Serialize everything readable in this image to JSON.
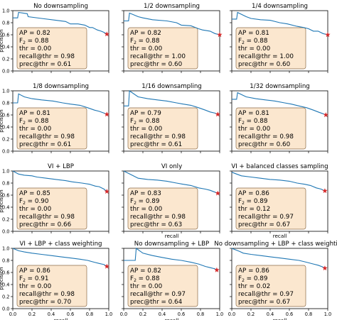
{
  "figure": {
    "xlabel": "recall",
    "ylabel": "precision",
    "colors": {
      "curve": "#1f77b4",
      "marker": "#d62728",
      "box_fill": "#fbe7cf",
      "box_edge": "#8c6b47"
    }
  },
  "chart_data": [
    {
      "type": "line",
      "title": "No downsampling",
      "x_ticks": [],
      "y_ticks": [
        "1.0",
        "0.8",
        "0.6",
        "0.4",
        "0.2",
        "0.0"
      ],
      "xlabel": "",
      "ylabel": "precision",
      "xlim": [
        0,
        1
      ],
      "ylim": [
        0,
        1
      ],
      "series": [
        {
          "x": [
            0.0,
            0.05,
            0.06,
            0.15,
            0.16,
            0.3,
            0.45,
            0.55,
            0.6,
            0.68,
            0.75,
            0.8,
            0.83,
            0.88,
            0.92,
            0.95,
            0.98
          ],
          "y": [
            0.88,
            0.88,
            0.97,
            0.95,
            0.9,
            0.87,
            0.84,
            0.82,
            0.78,
            0.78,
            0.76,
            0.72,
            0.72,
            0.68,
            0.66,
            0.64,
            0.61
          ]
        }
      ],
      "marker": {
        "x": 0.98,
        "y": 0.61
      },
      "stats": [
        {
          "label": "AP = 0.82"
        },
        {
          "label": "F",
          "sub": "2",
          "rest": " = 0.88"
        },
        {
          "label": "thr = 0.00"
        },
        {
          "label": "recall@thr = 0.98"
        },
        {
          "label": "prec@thr = 0.61"
        }
      ]
    },
    {
      "type": "line",
      "title": "1/2 downsampling",
      "x_ticks": [],
      "y_ticks": [],
      "xlabel": "",
      "ylabel": "",
      "xlim": [
        0,
        1
      ],
      "ylim": [
        0,
        1
      ],
      "series": [
        {
          "x": [
            0.0,
            0.05,
            0.06,
            0.15,
            0.2,
            0.3,
            0.45,
            0.55,
            0.6,
            0.7,
            0.78,
            0.82,
            0.9,
            0.95,
            1.0
          ],
          "y": [
            0.83,
            0.83,
            0.96,
            0.9,
            0.88,
            0.85,
            0.83,
            0.8,
            0.76,
            0.75,
            0.7,
            0.68,
            0.66,
            0.62,
            0.6
          ]
        }
      ],
      "marker": {
        "x": 1.0,
        "y": 0.6
      },
      "stats": [
        {
          "label": "AP = 0.82"
        },
        {
          "label": "F",
          "sub": "2",
          "rest": " = 0.88"
        },
        {
          "label": "thr = 0.00"
        },
        {
          "label": "recall@thr = 1.00"
        },
        {
          "label": "prec@thr = 0.60"
        }
      ]
    },
    {
      "type": "line",
      "title": "1/4 downsampling",
      "x_ticks": [],
      "y_ticks": [],
      "xlabel": "",
      "ylabel": "",
      "xlim": [
        0,
        1
      ],
      "ylim": [
        0,
        1
      ],
      "series": [
        {
          "x": [
            0.0,
            0.05,
            0.06,
            0.15,
            0.2,
            0.3,
            0.4,
            0.5,
            0.58,
            0.68,
            0.75,
            0.8,
            0.85,
            0.9,
            0.95,
            1.0
          ],
          "y": [
            0.86,
            0.86,
            0.97,
            0.9,
            0.87,
            0.85,
            0.84,
            0.8,
            0.78,
            0.74,
            0.72,
            0.7,
            0.66,
            0.66,
            0.62,
            0.6
          ]
        }
      ],
      "marker": {
        "x": 1.0,
        "y": 0.6
      },
      "stats": [
        {
          "label": "AP = 0.81"
        },
        {
          "label": "F",
          "sub": "2",
          "rest": " = 0.88"
        },
        {
          "label": "thr = 0.00"
        },
        {
          "label": "recall@thr = 1.00"
        },
        {
          "label": "prec@thr = 0.60"
        }
      ]
    },
    {
      "type": "line",
      "title": "1/8 downsampling",
      "x_ticks": [],
      "y_ticks": [
        "1.0",
        "0.8",
        "0.6",
        "0.4",
        "0.2",
        "0.0"
      ],
      "xlabel": "",
      "ylabel": "precision",
      "xlim": [
        0,
        1
      ],
      "ylim": [
        0,
        1
      ],
      "series": [
        {
          "x": [
            0.0,
            0.05,
            0.06,
            0.12,
            0.2,
            0.3,
            0.42,
            0.52,
            0.6,
            0.7,
            0.78,
            0.85,
            0.9,
            0.95,
            0.98
          ],
          "y": [
            0.8,
            0.8,
            0.95,
            0.9,
            0.87,
            0.85,
            0.83,
            0.8,
            0.78,
            0.76,
            0.72,
            0.68,
            0.66,
            0.63,
            0.61
          ]
        }
      ],
      "marker": {
        "x": 0.98,
        "y": 0.61
      },
      "stats": [
        {
          "label": "AP = 0.81"
        },
        {
          "label": "F",
          "sub": "2",
          "rest": " = 0.88"
        },
        {
          "label": "thr = 0.00"
        },
        {
          "label": "recall@thr = 0.98"
        },
        {
          "label": "prec@thr = 0.61"
        }
      ]
    },
    {
      "type": "line",
      "title": "1/16 downsampling",
      "x_ticks": [],
      "y_ticks": [],
      "xlabel": "",
      "ylabel": "",
      "xlim": [
        0,
        1
      ],
      "ylim": [
        0,
        1
      ],
      "series": [
        {
          "x": [
            0.0,
            0.05,
            0.06,
            0.15,
            0.25,
            0.35,
            0.45,
            0.55,
            0.62,
            0.7,
            0.78,
            0.85,
            0.9,
            0.95,
            0.98
          ],
          "y": [
            0.75,
            0.75,
            1.0,
            0.9,
            0.87,
            0.85,
            0.83,
            0.8,
            0.78,
            0.76,
            0.72,
            0.68,
            0.65,
            0.63,
            0.61
          ]
        }
      ],
      "marker": {
        "x": 0.98,
        "y": 0.61
      },
      "stats": [
        {
          "label": "AP = 0.79"
        },
        {
          "label": "F",
          "sub": "2",
          "rest": " = 0.88"
        },
        {
          "label": "thr = 0.00"
        },
        {
          "label": "recall@thr = 0.98"
        },
        {
          "label": "prec@thr = 0.61"
        }
      ]
    },
    {
      "type": "line",
      "title": "1/32 downsampling",
      "x_ticks": [],
      "y_ticks": [],
      "xlabel": "",
      "ylabel": "",
      "xlim": [
        0,
        1
      ],
      "ylim": [
        0,
        1
      ],
      "series": [
        {
          "x": [
            0.0,
            0.05,
            0.06,
            0.15,
            0.25,
            0.35,
            0.45,
            0.55,
            0.62,
            0.7,
            0.78,
            0.85,
            0.9,
            0.95,
            0.98
          ],
          "y": [
            0.86,
            0.86,
            0.97,
            0.9,
            0.87,
            0.85,
            0.83,
            0.8,
            0.78,
            0.75,
            0.72,
            0.68,
            0.65,
            0.62,
            0.6
          ]
        }
      ],
      "marker": {
        "x": 0.98,
        "y": 0.6
      },
      "stats": [
        {
          "label": "AP = 0.81"
        },
        {
          "label": "F",
          "sub": "2",
          "rest": " = 0.88"
        },
        {
          "label": "thr = 0.00"
        },
        {
          "label": "recall@thr = 0.98"
        },
        {
          "label": "prec@thr = 0.60"
        }
      ]
    },
    {
      "type": "line",
      "title": "VI + LBP",
      "x_ticks": [],
      "y_ticks": [
        "1.0",
        "0.8",
        "0.6",
        "0.4",
        "0.2",
        "0.0"
      ],
      "xlabel": "",
      "ylabel": "precision",
      "xlim": [
        0,
        1
      ],
      "ylim": [
        0,
        1
      ],
      "series": [
        {
          "x": [
            0.0,
            0.06,
            0.12,
            0.2,
            0.25,
            0.35,
            0.45,
            0.55,
            0.62,
            0.72,
            0.8,
            0.86,
            0.9,
            0.95,
            0.98
          ],
          "y": [
            1.0,
            0.95,
            0.93,
            0.92,
            0.9,
            0.88,
            0.86,
            0.84,
            0.82,
            0.8,
            0.78,
            0.75,
            0.74,
            0.7,
            0.66
          ]
        }
      ],
      "marker": {
        "x": 0.98,
        "y": 0.66
      },
      "stats": [
        {
          "label": "AP = 0.85"
        },
        {
          "label": "F",
          "sub": "2",
          "rest": " = 0.90"
        },
        {
          "label": "thr = 0.00"
        },
        {
          "label": "recall@thr = 0.98"
        },
        {
          "label": "prec@thr = 0.66"
        }
      ]
    },
    {
      "type": "line",
      "title": "VI only",
      "x_ticks": [],
      "y_ticks": [],
      "xlabel": "recall",
      "ylabel": "",
      "xlim": [
        0,
        1
      ],
      "ylim": [
        0,
        1
      ],
      "series": [
        {
          "x": [
            0.0,
            0.05,
            0.1,
            0.15,
            0.25,
            0.35,
            0.45,
            0.55,
            0.62,
            0.7,
            0.78,
            0.85,
            0.9,
            0.95,
            0.98
          ],
          "y": [
            1.0,
            0.96,
            0.92,
            0.88,
            0.86,
            0.85,
            0.83,
            0.8,
            0.78,
            0.76,
            0.72,
            0.7,
            0.68,
            0.65,
            0.63
          ]
        }
      ],
      "marker": {
        "x": 0.98,
        "y": 0.63
      },
      "stats": [
        {
          "label": "AP = 0.83"
        },
        {
          "label": "F",
          "sub": "2",
          "rest": " = 0.89"
        },
        {
          "label": "thr = 0.00"
        },
        {
          "label": "recall@thr = 0.98"
        },
        {
          "label": "prec@thr = 0.63"
        }
      ]
    },
    {
      "type": "line",
      "title": "VI + balanced classes sampling",
      "x_ticks": [],
      "y_ticks": [],
      "xlabel": "recall",
      "ylabel": "",
      "xlim": [
        0,
        1
      ],
      "ylim": [
        0,
        1
      ],
      "series": [
        {
          "x": [
            0.0,
            0.05,
            0.1,
            0.2,
            0.3,
            0.4,
            0.5,
            0.6,
            0.68,
            0.76,
            0.82,
            0.88,
            0.93,
            0.97
          ],
          "y": [
            0.98,
            0.95,
            0.92,
            0.9,
            0.88,
            0.86,
            0.85,
            0.83,
            0.8,
            0.78,
            0.76,
            0.72,
            0.7,
            0.67
          ]
        }
      ],
      "marker": {
        "x": 0.97,
        "y": 0.67
      },
      "stats": [
        {
          "label": "AP = 0.86"
        },
        {
          "label": "F",
          "sub": "2",
          "rest": " = 0.89"
        },
        {
          "label": "thr = 0.12"
        },
        {
          "label": "recall@thr = 0.97"
        },
        {
          "label": "prec@thr = 0.67"
        }
      ]
    },
    {
      "type": "line",
      "title": "VI + LBP + class weighting",
      "x_ticks": [
        "0.0",
        "0.2",
        "0.4",
        "0.6",
        "0.8",
        "1.0"
      ],
      "y_ticks": [
        "1.0",
        "0.8",
        "0.6",
        "0.4",
        "0.2",
        "0.0"
      ],
      "xlabel": "recall",
      "ylabel": "precision",
      "xlim": [
        0,
        1
      ],
      "ylim": [
        0,
        1
      ],
      "series": [
        {
          "x": [
            0.0,
            0.06,
            0.12,
            0.2,
            0.3,
            0.4,
            0.5,
            0.6,
            0.7,
            0.78,
            0.85,
            0.9,
            0.95,
            0.98
          ],
          "y": [
            1.0,
            0.96,
            0.94,
            0.92,
            0.9,
            0.88,
            0.86,
            0.84,
            0.82,
            0.8,
            0.77,
            0.75,
            0.73,
            0.7
          ]
        }
      ],
      "marker": {
        "x": 0.98,
        "y": 0.7
      },
      "stats": [
        {
          "label": "AP = 0.86"
        },
        {
          "label": "F",
          "sub": "2",
          "rest": " = 0.91"
        },
        {
          "label": "thr = 0.00"
        },
        {
          "label": "recall@thr = 0.98"
        },
        {
          "label": "prec@thr = 0.70"
        }
      ]
    },
    {
      "type": "line",
      "title": "No downsampling + LBP",
      "x_ticks": [
        "0.0",
        "0.2",
        "0.4",
        "0.6",
        "0.8",
        "1.0"
      ],
      "y_ticks": [],
      "xlabel": "recall",
      "ylabel": "",
      "xlim": [
        0,
        1
      ],
      "ylim": [
        0,
        1
      ],
      "series": [
        {
          "x": [
            0.0,
            0.12,
            0.13,
            0.2,
            0.3,
            0.4,
            0.5,
            0.6,
            0.7,
            0.78,
            0.85,
            0.9,
            0.95,
            0.97
          ],
          "y": [
            0.8,
            0.8,
            1.0,
            0.92,
            0.88,
            0.85,
            0.82,
            0.8,
            0.77,
            0.74,
            0.7,
            0.68,
            0.66,
            0.64
          ]
        }
      ],
      "marker": {
        "x": 0.97,
        "y": 0.64
      },
      "stats": [
        {
          "label": "AP = 0.82"
        },
        {
          "label": "F",
          "sub": "2",
          "rest": " = 0.88"
        },
        {
          "label": "thr = 0.00"
        },
        {
          "label": "recall@thr = 0.97"
        },
        {
          "label": "prec@thr = 0.64"
        }
      ]
    },
    {
      "type": "line",
      "title": "No downsampling + LBP + class weighting",
      "x_ticks": [
        "0.0",
        "0.2",
        "0.4",
        "0.6",
        "0.8",
        "1.0"
      ],
      "y_ticks": [],
      "xlabel": "recall",
      "ylabel": "",
      "xlim": [
        0,
        1
      ],
      "ylim": [
        0,
        1
      ],
      "series": [
        {
          "x": [
            0.0,
            0.08,
            0.12,
            0.2,
            0.3,
            0.4,
            0.5,
            0.6,
            0.7,
            0.78,
            0.85,
            0.9,
            0.95,
            0.97
          ],
          "y": [
            1.0,
            0.95,
            0.92,
            0.9,
            0.88,
            0.86,
            0.84,
            0.82,
            0.8,
            0.77,
            0.74,
            0.72,
            0.69,
            0.67
          ]
        }
      ],
      "marker": {
        "x": 0.97,
        "y": 0.67
      },
      "stats": [
        {
          "label": "AP = 0.86"
        },
        {
          "label": "F",
          "sub": "2",
          "rest": " = 0.89"
        },
        {
          "label": "thr = 0.02"
        },
        {
          "label": "recall@thr = 0.97"
        },
        {
          "label": "prec@thr = 0.67"
        }
      ]
    }
  ]
}
